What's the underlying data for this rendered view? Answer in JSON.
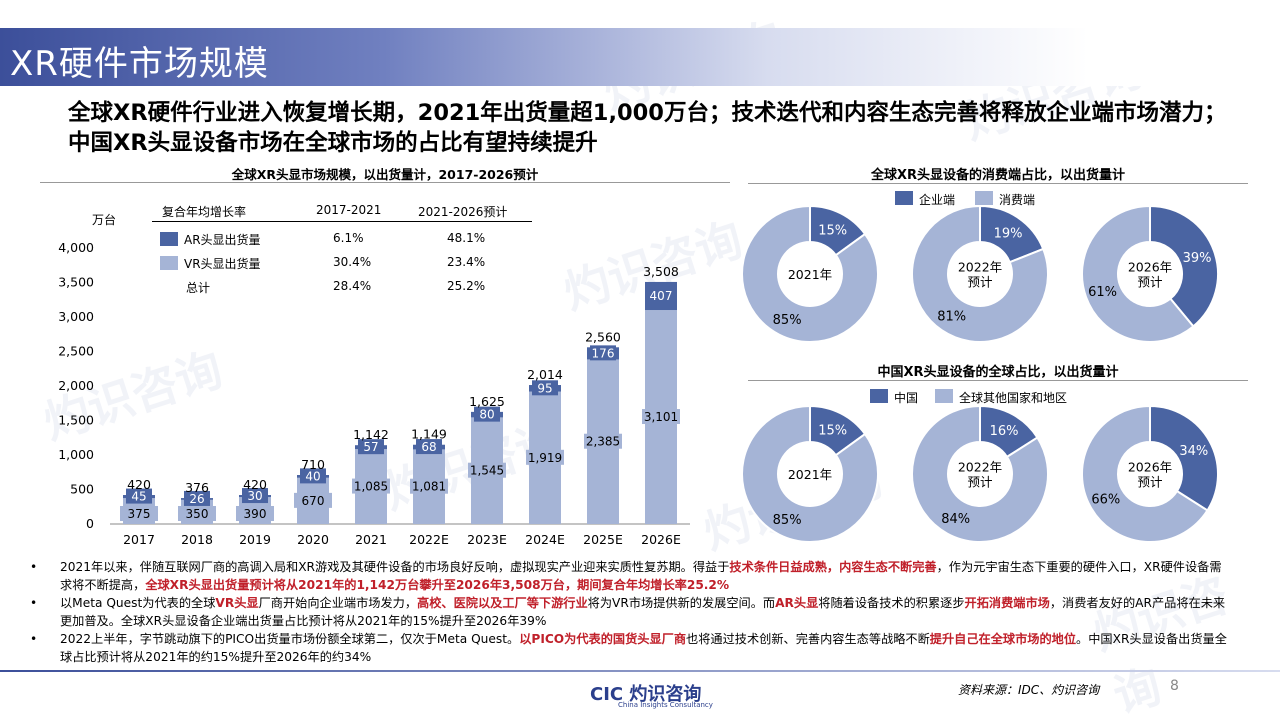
{
  "title": "XR硬件市场规模",
  "headline": "全球XR硬件行业进入恢复增长期，2021年出货量超1,000万台；技术迭代和内容生态完善将释放企业端市场潜力；中国XR头显设备市场在全球市场的占比有望持续提升",
  "watermark": "灼识咨询",
  "colors": {
    "dark": "#4a64a2",
    "light": "#a5b4d6"
  },
  "left_chart": {
    "title": "全球XR头显市场规模，以出货量计，2017-2026预计",
    "unit": "万台",
    "cagr_header": "复合年均增长率",
    "cagr_cols": [
      "2017-2021",
      "2021-2026预计"
    ],
    "cagr_rows": [
      {
        "label": "AR头显出货量",
        "v1": "6.1%",
        "v2": "48.1%"
      },
      {
        "label": "VR头显出货量",
        "v1": "30.4%",
        "v2": "23.4%"
      },
      {
        "label": "总计",
        "v1": "28.4%",
        "v2": "25.2%"
      }
    ]
  },
  "chart_data": [
    {
      "type": "bar",
      "title": "全球XR头显市场规模，以出货量计，2017-2026预计",
      "ylabel": "万台",
      "ylim": [
        0,
        4000
      ],
      "yticks": [
        "0",
        "500",
        "1,000",
        "1,500",
        "2,000",
        "2,500",
        "3,000",
        "3,500",
        "4,000"
      ],
      "stacked": true,
      "categories": [
        "2017",
        "2018",
        "2019",
        "2020",
        "2021",
        "2022E",
        "2023E",
        "2024E",
        "2025E",
        "2026E"
      ],
      "series": [
        {
          "name": "VR头显出货量",
          "values": [
            375,
            350,
            390,
            670,
            1085,
            1081,
            1545,
            1919,
            2385,
            3101
          ],
          "labels": [
            "375",
            "350",
            "390",
            "670",
            "1,085",
            "1,081",
            "1,545",
            "1,919",
            "2,385",
            "3,101"
          ]
        },
        {
          "name": "AR头显出货量",
          "values": [
            45,
            26,
            30,
            40,
            57,
            68,
            80,
            95,
            176,
            407
          ],
          "labels": [
            "45",
            "26",
            "30",
            "40",
            "57",
            "68",
            "80",
            "95",
            "176",
            "407"
          ]
        }
      ],
      "totals": [
        "420",
        "376",
        "420",
        "710",
        "1,142",
        "1,149",
        "1,625",
        "2,014",
        "2,560",
        "3,508"
      ]
    },
    {
      "type": "pie",
      "title": "全球XR头显设备的消费端占比，以出货量计",
      "legend": [
        "企业端",
        "消费端"
      ],
      "charts": [
        {
          "center": "2021年",
          "values": [
            15,
            85
          ],
          "labels": [
            "15%",
            "85%"
          ]
        },
        {
          "center": "2022年\n预计",
          "values": [
            19,
            81
          ],
          "labels": [
            "19%",
            "81%"
          ]
        },
        {
          "center": "2026年\n预计",
          "values": [
            39,
            61
          ],
          "labels": [
            "39%",
            "61%"
          ]
        }
      ]
    },
    {
      "type": "pie",
      "title": "中国XR头显设备的全球占比，以出货量计",
      "legend": [
        "中国",
        "全球其他国家和地区"
      ],
      "charts": [
        {
          "center": "2021年",
          "values": [
            15,
            85
          ],
          "labels": [
            "15%",
            "85%"
          ]
        },
        {
          "center": "2022年\n预计",
          "values": [
            16,
            84
          ],
          "labels": [
            "16%",
            "84%"
          ]
        },
        {
          "center": "2026年\n预计",
          "values": [
            34,
            66
          ],
          "labels": [
            "34%",
            "66%"
          ]
        }
      ]
    }
  ],
  "bullets": [
    [
      {
        "t": "2021年以来，伴随互联网厂商的高调入局和XR游戏及其硬件设备的市场良好反响，虚拟现实产业迎来实质性复苏期。得益于"
      },
      {
        "t": "技术条件日益成熟，内容生态不断完善",
        "red": true
      },
      {
        "t": "，作为元宇宙生态下重要的硬件入口，XR硬件设备需求将不断提高，"
      },
      {
        "t": "全球XR头显出货量预计将从2021年的1,142万台攀升至2026年3,508万台，期间复合年均增长率25.2%",
        "red": true
      }
    ],
    [
      {
        "t": "以Meta Quest为代表的全球"
      },
      {
        "t": "VR头显",
        "red": true
      },
      {
        "t": "厂商开始向企业端市场发力，"
      },
      {
        "t": "高校、医院以及工厂等下游行业",
        "red": true
      },
      {
        "t": "将为VR市场提供新的发展空间。而"
      },
      {
        "t": "AR头显",
        "red": true
      },
      {
        "t": "将随着设备技术的积累逐步"
      },
      {
        "t": "开拓消费端市场",
        "red": true
      },
      {
        "t": "，消费者友好的AR产品将在未来更加普及。全球XR头显设备企业端出货量占比预计将从2021年的15%提升至2026年39%"
      }
    ],
    [
      {
        "t": "2022上半年，字节跳动旗下的PICO出货量市场份额全球第二，仅次于Meta Quest。"
      },
      {
        "t": "以PICO为代表的国货头显厂商",
        "red": true
      },
      {
        "t": "也将通过技术创新、完善内容生态等战略不断"
      },
      {
        "t": "提升自己在全球市场的地位",
        "red": true
      },
      {
        "t": "。中国XR头显设备出货量全球占比预计将从2021年的约15%提升至2026年的约34%"
      }
    ]
  ],
  "footer": {
    "source": "资料来源：IDC、灼识咨询",
    "page": "8",
    "logo": "CIC 灼识咨询",
    "logo_sub": "China Insights Consultancy"
  }
}
